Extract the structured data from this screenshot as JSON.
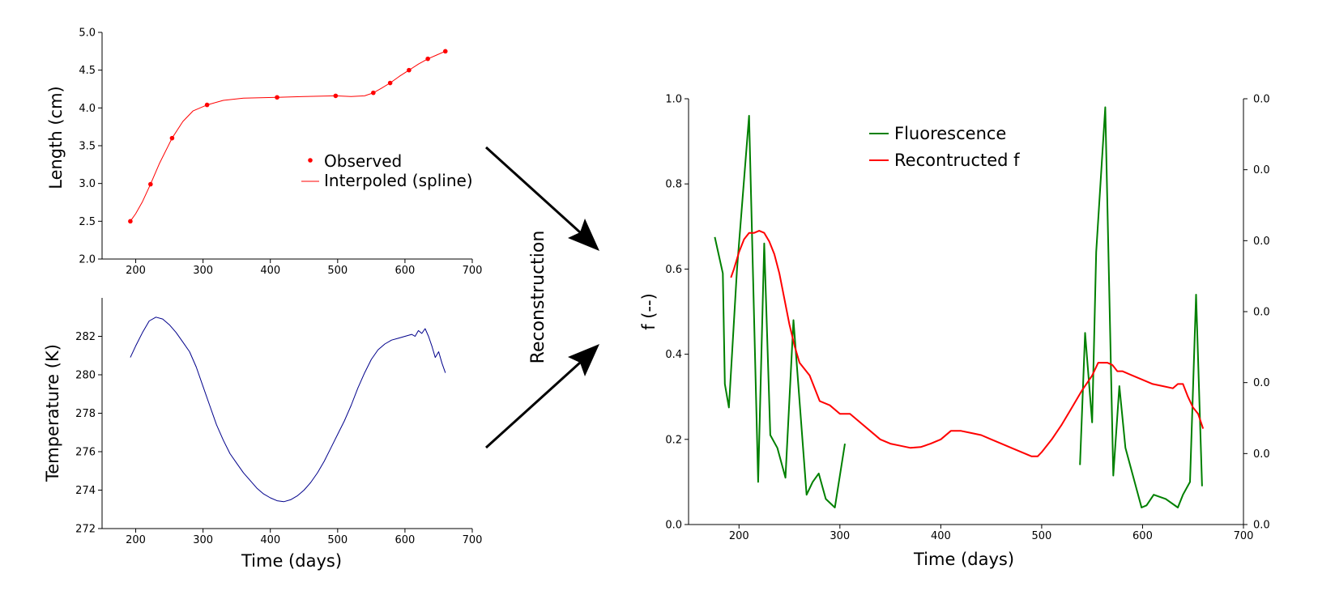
{
  "arrow_label": "Reconstruction",
  "chart_data": [
    {
      "id": "length",
      "type": "scatter",
      "title": "",
      "xlabel": "",
      "ylabel": "Length (cm)",
      "xlim": [
        150,
        700
      ],
      "ylim": [
        2.0,
        5.0
      ],
      "xticks": [
        "200",
        "300",
        "400",
        "500",
        "600",
        "700"
      ],
      "yticks": [
        "2.0",
        "2.5",
        "3.0",
        "3.5",
        "4.0",
        "4.5",
        "5.0"
      ],
      "legend_position": "center-right",
      "series": [
        {
          "name": "Observed",
          "color": "#ff0000",
          "marker": "dot",
          "x": [
            192,
            222,
            254,
            306,
            410,
            497,
            553,
            578,
            606,
            634,
            660
          ],
          "y": [
            2.5,
            2.99,
            3.6,
            4.04,
            4.14,
            4.16,
            4.2,
            4.33,
            4.5,
            4.65,
            4.75
          ]
        },
        {
          "name": "Interpoled (spline)",
          "color": "#ff0000",
          "marker": "line",
          "x": [
            192,
            200,
            210,
            222,
            235,
            254,
            270,
            285,
            306,
            330,
            360,
            410,
            450,
            497,
            520,
            540,
            553,
            565,
            578,
            592,
            606,
            620,
            634,
            647,
            660
          ],
          "y": [
            2.5,
            2.6,
            2.76,
            2.99,
            3.26,
            3.6,
            3.82,
            3.96,
            4.04,
            4.1,
            4.13,
            4.14,
            4.15,
            4.16,
            4.15,
            4.16,
            4.2,
            4.26,
            4.33,
            4.42,
            4.5,
            4.58,
            4.65,
            4.7,
            4.75
          ]
        }
      ]
    },
    {
      "id": "temperature",
      "type": "line",
      "title": "",
      "xlabel": "Time (days)",
      "ylabel": "Temperature (K)",
      "xlim": [
        150,
        700
      ],
      "ylim": [
        272,
        284
      ],
      "xticks": [
        "200",
        "300",
        "400",
        "500",
        "600",
        "700"
      ],
      "yticks": [
        "272",
        "274",
        "276",
        "278",
        "280",
        "282"
      ],
      "series": [
        {
          "name": "",
          "color": "#00008b",
          "x": [
            192,
            200,
            210,
            220,
            230,
            240,
            250,
            260,
            270,
            280,
            290,
            300,
            310,
            320,
            330,
            340,
            350,
            360,
            370,
            380,
            390,
            400,
            410,
            420,
            430,
            440,
            450,
            460,
            470,
            480,
            490,
            500,
            510,
            520,
            530,
            540,
            550,
            560,
            570,
            580,
            590,
            600,
            610,
            615,
            620,
            625,
            630,
            635,
            640,
            645,
            650,
            655,
            660
          ],
          "y": [
            280.9,
            281.5,
            282.2,
            282.8,
            283.0,
            282.9,
            282.6,
            282.2,
            281.7,
            281.2,
            280.4,
            279.4,
            278.4,
            277.4,
            276.6,
            275.9,
            275.4,
            274.9,
            274.5,
            274.1,
            273.8,
            273.6,
            273.45,
            273.4,
            273.5,
            273.7,
            274.0,
            274.4,
            274.9,
            275.5,
            276.2,
            276.9,
            277.6,
            278.4,
            279.3,
            280.1,
            280.8,
            281.3,
            281.6,
            281.8,
            281.9,
            282.0,
            282.1,
            282.0,
            282.3,
            282.15,
            282.4,
            282.0,
            281.5,
            280.9,
            281.2,
            280.6,
            280.1
          ]
        }
      ]
    },
    {
      "id": "fluorescence",
      "type": "line",
      "title": "",
      "xlabel": "Time (days)",
      "ylabel": "f (--)",
      "xlim": [
        150,
        700
      ],
      "ylim": [
        0.0,
        1.0
      ],
      "xticks": [
        "200",
        "300",
        "400",
        "500",
        "600",
        "700"
      ],
      "yticks": [
        "0.0",
        "0.2",
        "0.4",
        "0.6",
        "0.8",
        "1.0"
      ],
      "right_axis_ticks": [
        "0.0",
        "0.0",
        "0.0",
        "0.0",
        "0.0",
        "0.0",
        "0.0"
      ],
      "legend_position": "top-center",
      "series": [
        {
          "name": "Fluorescence",
          "color": "#008000",
          "segments": [
            {
              "x": [
                176,
                184,
                186,
                190,
                198,
                210,
                219,
                225,
                231,
                238,
                246,
                254,
                267,
                273,
                279,
                286,
                295,
                305
              ],
              "y": [
                0.675,
                0.59,
                0.33,
                0.275,
                0.6,
                0.96,
                0.1,
                0.66,
                0.21,
                0.18,
                0.11,
                0.48,
                0.07,
                0.1,
                0.12,
                0.06,
                0.04,
                0.19
              ]
            },
            {
              "x": [
                538,
                543,
                550,
                554,
                563,
                571,
                577,
                583,
                599,
                604,
                611,
                623,
                635,
                640,
                647,
                653,
                659
              ],
              "y": [
                0.14,
                0.45,
                0.24,
                0.64,
                0.98,
                0.115,
                0.325,
                0.18,
                0.04,
                0.045,
                0.07,
                0.06,
                0.04,
                0.07,
                0.1,
                0.54,
                0.09
              ]
            }
          ]
        },
        {
          "name": "Recontructed f",
          "color": "#ff0000",
          "x": [
            192,
            195,
            200,
            205,
            210,
            215,
            220,
            225,
            230,
            235,
            240,
            245,
            250,
            255,
            260,
            270,
            280,
            290,
            300,
            310,
            320,
            330,
            340,
            350,
            360,
            370,
            380,
            390,
            400,
            410,
            420,
            430,
            440,
            450,
            460,
            470,
            480,
            490,
            496,
            500,
            510,
            520,
            530,
            540,
            550,
            556,
            560,
            565,
            570,
            575,
            580,
            590,
            600,
            610,
            620,
            630,
            635,
            640,
            645,
            650,
            655,
            660
          ],
          "y": [
            0.58,
            0.6,
            0.64,
            0.67,
            0.685,
            0.685,
            0.69,
            0.685,
            0.665,
            0.635,
            0.59,
            0.53,
            0.47,
            0.42,
            0.38,
            0.35,
            0.29,
            0.28,
            0.26,
            0.26,
            0.24,
            0.22,
            0.2,
            0.19,
            0.185,
            0.18,
            0.182,
            0.19,
            0.2,
            0.22,
            0.22,
            0.215,
            0.21,
            0.2,
            0.19,
            0.18,
            0.17,
            0.16,
            0.16,
            0.17,
            0.2,
            0.235,
            0.275,
            0.315,
            0.35,
            0.38,
            0.38,
            0.38,
            0.375,
            0.36,
            0.36,
            0.35,
            0.34,
            0.33,
            0.325,
            0.32,
            0.33,
            0.33,
            0.3,
            0.275,
            0.26,
            0.225
          ]
        }
      ]
    }
  ]
}
